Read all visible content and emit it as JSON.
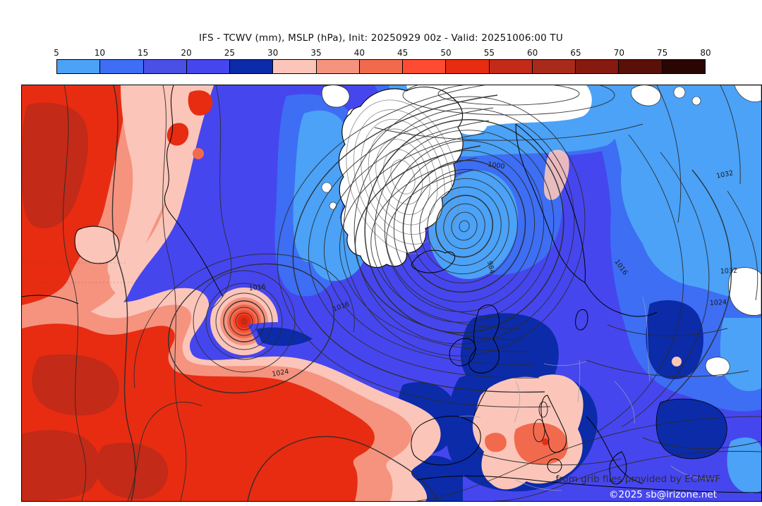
{
  "header": {
    "title": "IFS - TCWV (mm), MSLP (hPa), Init: 20250929 00z - Valid: 20251006:00 TU"
  },
  "colorbar": {
    "tick_labels": [
      "5",
      "10",
      "15",
      "20",
      "25",
      "30",
      "35",
      "40",
      "45",
      "50",
      "55",
      "60",
      "65",
      "70",
      "75",
      "80"
    ],
    "segment_colors": [
      "#4BA2F7",
      "#3D6EF3",
      "#4A4FE6",
      "#4646EE",
      "#0B2BA8",
      "#FBC5B9",
      "#F5937F",
      "#F26A4D",
      "#FF4B31",
      "#E72C12",
      "#C32A17",
      "#A82A1B",
      "#871A10",
      "#581008",
      "#2A0603"
    ],
    "below_min_color": "#FFFFFF",
    "unit": "mm"
  },
  "map": {
    "base_color": "#4646EE",
    "low_tcwv_color": "#FFFFFF",
    "isobar_labels": [
      {
        "text": "1016"
      },
      {
        "text": "1024"
      },
      {
        "text": "1016"
      },
      {
        "text": "1024"
      },
      {
        "text": "1032"
      },
      {
        "text": "1032"
      },
      {
        "text": "1000"
      },
      {
        "text": "984"
      },
      {
        "text": "1016"
      }
    ],
    "credits": {
      "line1": "from grib files provided by ECMWF",
      "line2": "©2025 sb@irizone.net"
    }
  },
  "chart_data": {
    "type": "heatmap",
    "title": "IFS - TCWV (mm), MSLP (hPa), Init: 20250929 00z - Valid: 20251006:00 TU",
    "model": "IFS",
    "fields": [
      "TCWV (mm)",
      "MSLP (hPa)"
    ],
    "init": "20250929 00z",
    "valid": "20251006:00 TU",
    "colorbar_values": [
      5,
      10,
      15,
      20,
      25,
      30,
      35,
      40,
      45,
      50,
      55,
      60,
      65,
      70,
      75,
      80
    ],
    "colorbar_colors": [
      "#4BA2F7",
      "#3D6EF3",
      "#4A4FE6",
      "#4646EE",
      "#0B2BA8",
      "#FBC5B9",
      "#F5937F",
      "#F26A4D",
      "#FF4B31",
      "#E72C12",
      "#C32A17",
      "#A82A1B",
      "#871A10",
      "#581008",
      "#2A0603"
    ],
    "mslp_labeled_contours_hpa": [
      984,
      1000,
      1016,
      1024,
      1032
    ],
    "legend_position": "top",
    "region": "North Atlantic / Europe / Greenland"
  }
}
